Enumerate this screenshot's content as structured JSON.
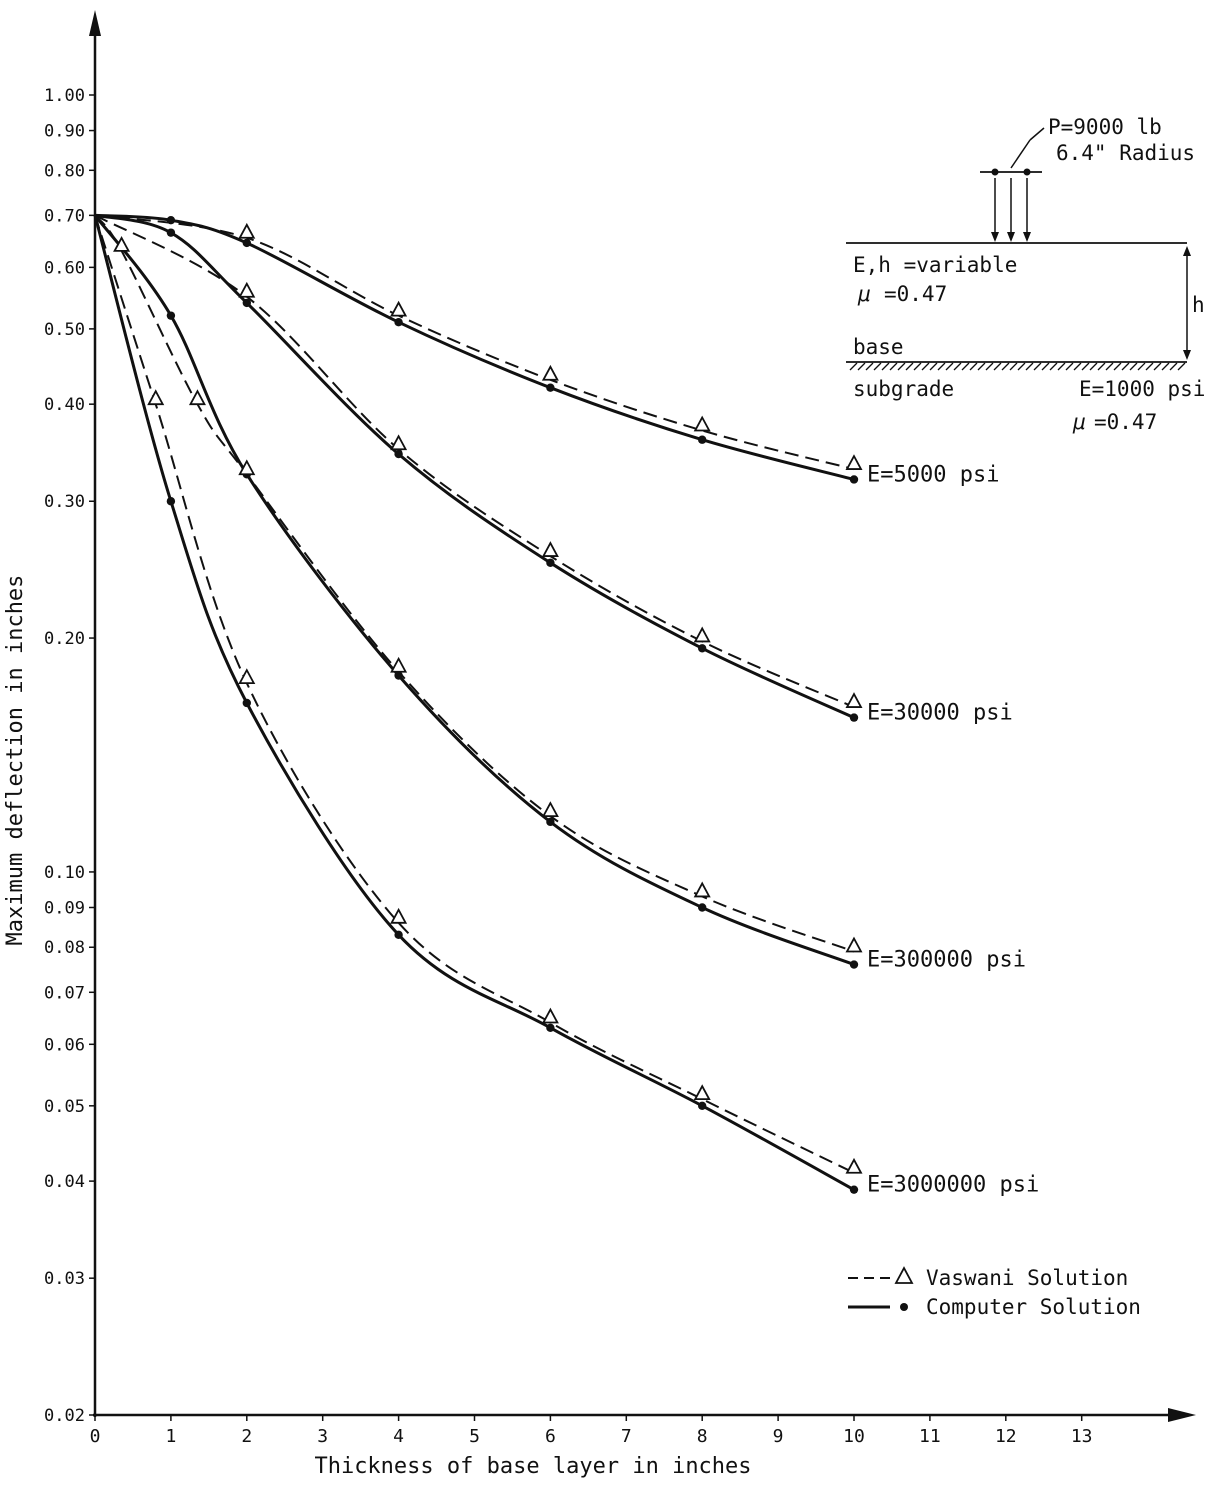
{
  "chart_data": {
    "type": "line",
    "xlabel": "Thickness of base layer in inches",
    "ylabel": "Maximum deflection in inches",
    "y_scale": "log",
    "xlim": [
      0,
      14
    ],
    "ylim": [
      0.02,
      1.0
    ],
    "x_ticks": [
      "0",
      "1",
      "2",
      "3",
      "4",
      "5",
      "6",
      "7",
      "8",
      "9",
      "10",
      "11",
      "12",
      "13"
    ],
    "y_ticks": [
      "1.00",
      "0.90",
      "0.80",
      "0.70",
      "0.60",
      "0.50",
      "0.40",
      "0.30",
      "0.20",
      "0.10",
      "0.09",
      "0.08",
      "0.07",
      "0.06",
      "0.05",
      "0.04",
      "0.03",
      "0.02"
    ],
    "y_tick_values": [
      1.0,
      0.9,
      0.8,
      0.7,
      0.6,
      0.5,
      0.4,
      0.3,
      0.2,
      0.1,
      0.09,
      0.08,
      0.07,
      0.06,
      0.05,
      0.04,
      0.03,
      0.02
    ],
    "groups": [
      {
        "label": "E=5000 psi",
        "vaswani": {
          "x": [
            0,
            2,
            4,
            6,
            8,
            10
          ],
          "y": [
            0.7,
            0.655,
            0.52,
            0.43,
            0.37,
            0.33
          ]
        },
        "computer": {
          "x": [
            0,
            1,
            2,
            4,
            6,
            8,
            10
          ],
          "y": [
            0.7,
            0.69,
            0.645,
            0.51,
            0.42,
            0.36,
            0.32
          ]
        }
      },
      {
        "label": "E=30000 psi",
        "vaswani": {
          "x": [
            0,
            2,
            4,
            6,
            8,
            10
          ],
          "y": [
            0.7,
            0.55,
            0.35,
            0.255,
            0.198,
            0.163
          ]
        },
        "computer": {
          "x": [
            0,
            1,
            2,
            4,
            6,
            8,
            10
          ],
          "y": [
            0.7,
            0.665,
            0.54,
            0.345,
            0.25,
            0.194,
            0.158
          ]
        }
      },
      {
        "label": "E=300000 psi",
        "vaswani": {
          "x": [
            0,
            0.35,
            1.35,
            2,
            4,
            6,
            8,
            10
          ],
          "y": [
            0.7,
            0.63,
            0.4,
            0.325,
            0.181,
            0.118,
            0.093,
            0.079
          ]
        },
        "computer": {
          "x": [
            0,
            1,
            2,
            4,
            6,
            8,
            10
          ],
          "y": [
            0.7,
            0.52,
            0.325,
            0.179,
            0.116,
            0.09,
            0.076
          ]
        }
      },
      {
        "label": "E=3000000 psi",
        "vaswani": {
          "x": [
            0,
            0.8,
            2,
            4,
            6,
            8,
            10
          ],
          "y": [
            0.7,
            0.4,
            0.175,
            0.086,
            0.064,
            0.051,
            0.041
          ]
        },
        "computer": {
          "x": [
            0,
            1,
            2,
            4,
            6,
            8,
            10
          ],
          "y": [
            0.7,
            0.3,
            0.165,
            0.083,
            0.063,
            0.05,
            0.039
          ]
        }
      }
    ],
    "legend": {
      "position": "bottom-right",
      "entries": [
        {
          "label": "Vaswani Solution",
          "style": "dashed",
          "marker": "triangle"
        },
        {
          "label": "Computer Solution",
          "style": "solid",
          "marker": "dot"
        }
      ]
    },
    "inset": {
      "load": "P=9000 lb",
      "radius": "6.4\" Radius",
      "layer": "E,h =variable",
      "layer_mu": "=0.47",
      "mu_symbol": "μ",
      "base": "base",
      "subgrade": "subgrade",
      "subgrade_E": "E=1000 psi",
      "subgrade_mu": "=0.47",
      "h": "h"
    },
    "colors": {
      "ink": "#111111",
      "background": "#ffffff"
    }
  }
}
